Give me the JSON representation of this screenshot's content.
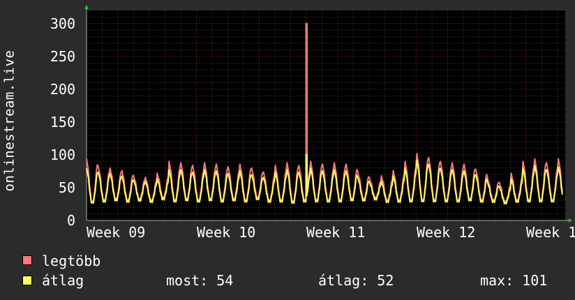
{
  "chart_data": {
    "type": "line",
    "ylabel": "onlinestream.live",
    "ylim": [
      0,
      320
    ],
    "yticks": [
      "0",
      "50",
      "100",
      "150",
      "200",
      "250",
      "300"
    ],
    "x_tick_labels": [
      "Week 09",
      "Week 10",
      "Week 11",
      "Week 12",
      "Week 1"
    ],
    "grid": true,
    "series": [
      {
        "name": "legtöbb",
        "color": "#ff7777",
        "cycles": [
          [
            92,
            28
          ],
          [
            80,
            30
          ],
          [
            78,
            32
          ],
          [
            74,
            30
          ],
          [
            66,
            32
          ],
          [
            64,
            30
          ],
          [
            70,
            34
          ],
          [
            88,
            30
          ],
          [
            86,
            32
          ],
          [
            82,
            30
          ],
          [
            86,
            32
          ],
          [
            84,
            30
          ],
          [
            80,
            32
          ],
          [
            84,
            30
          ],
          [
            78,
            34
          ],
          [
            72,
            30
          ],
          [
            82,
            30
          ],
          [
            86,
            28
          ],
          [
            82,
            30
          ],
          [
            88,
            30
          ],
          [
            84,
            30
          ],
          [
            86,
            30
          ],
          [
            84,
            32
          ],
          [
            72,
            32
          ],
          [
            62,
            34
          ],
          [
            66,
            30
          ],
          [
            74,
            30
          ],
          [
            88,
            30
          ],
          [
            100,
            30
          ],
          [
            94,
            30
          ],
          [
            88,
            30
          ],
          [
            86,
            30
          ],
          [
            84,
            32
          ],
          [
            76,
            30
          ],
          [
            62,
            30
          ],
          [
            56,
            28
          ],
          [
            70,
            30
          ],
          [
            88,
            30
          ],
          [
            92,
            30
          ],
          [
            86,
            30
          ],
          [
            92,
            30
          ]
        ],
        "spike": {
          "index": 18.6,
          "value": 300
        }
      },
      {
        "name": "átlag",
        "color": "#ffff66",
        "cycles": [
          [
            78,
            26
          ],
          [
            72,
            28
          ],
          [
            70,
            30
          ],
          [
            66,
            28
          ],
          [
            60,
            30
          ],
          [
            58,
            28
          ],
          [
            62,
            32
          ],
          [
            76,
            28
          ],
          [
            76,
            30
          ],
          [
            72,
            28
          ],
          [
            76,
            30
          ],
          [
            74,
            28
          ],
          [
            70,
            30
          ],
          [
            74,
            28
          ],
          [
            68,
            32
          ],
          [
            64,
            28
          ],
          [
            72,
            28
          ],
          [
            76,
            26
          ],
          [
            72,
            28
          ],
          [
            78,
            28
          ],
          [
            74,
            28
          ],
          [
            76,
            28
          ],
          [
            74,
            30
          ],
          [
            64,
            30
          ],
          [
            56,
            32
          ],
          [
            58,
            28
          ],
          [
            66,
            28
          ],
          [
            78,
            28
          ],
          [
            90,
            28
          ],
          [
            84,
            28
          ],
          [
            78,
            28
          ],
          [
            76,
            28
          ],
          [
            74,
            30
          ],
          [
            68,
            28
          ],
          [
            56,
            28
          ],
          [
            50,
            26
          ],
          [
            62,
            28
          ],
          [
            78,
            28
          ],
          [
            82,
            28
          ],
          [
            76,
            28
          ],
          [
            80,
            28
          ]
        ],
        "spike": {
          "index": 18.6,
          "value": 100
        }
      }
    ]
  },
  "legend": {
    "items": [
      {
        "label": "legtöbb",
        "color": "#ff7777"
      },
      {
        "label": "átlag",
        "color": "#ffff66"
      }
    ],
    "stats": {
      "most": "most: 54",
      "atlag": "átlag: 52",
      "max": "max: 101"
    }
  }
}
